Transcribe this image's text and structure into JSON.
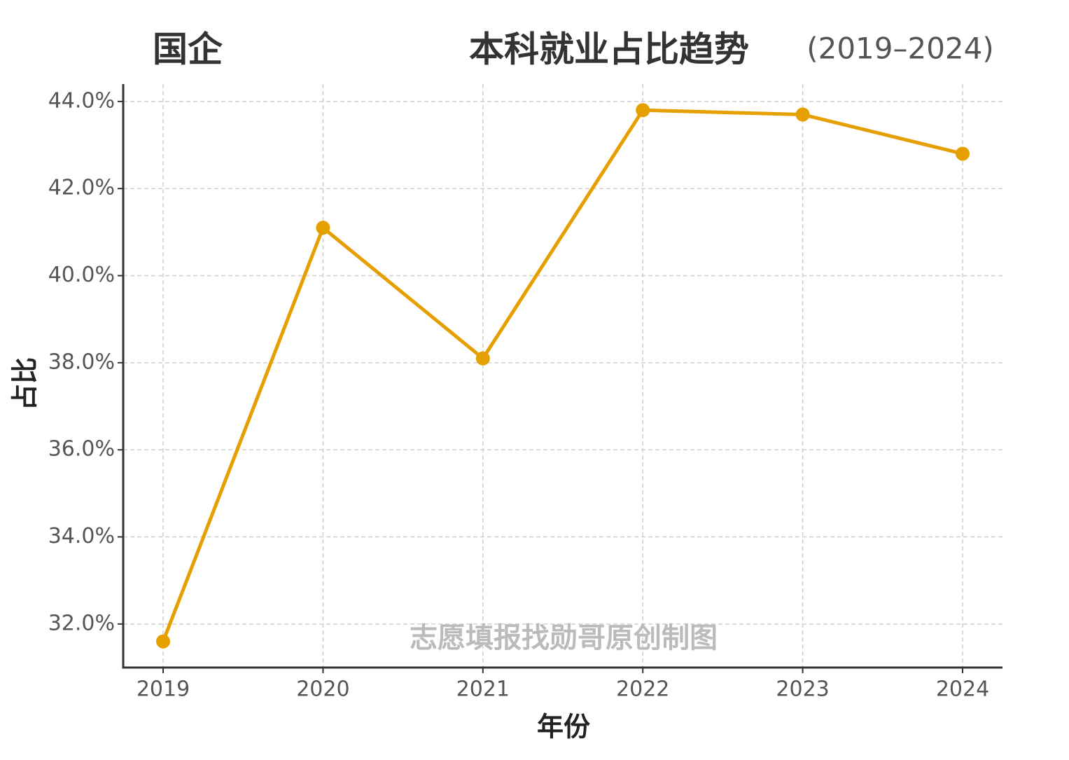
{
  "chart_data": {
    "type": "line",
    "title_prefix": "国企",
    "title": "本科就业占比趋势",
    "subtitle": "(2019–2024)",
    "x_label": "年份",
    "y_label": "占比",
    "annotation": "志愿填报找勋哥原创制图",
    "categories": [
      "2019",
      "2020",
      "2021",
      "2022",
      "2023",
      "2024"
    ],
    "series": [
      {
        "name": "国企",
        "color": "#e69f00",
        "values": [
          31.6,
          41.1,
          38.1,
          43.8,
          43.7,
          42.8
        ]
      }
    ],
    "ylim": [
      31.0,
      44.4
    ],
    "yticks": [
      {
        "value": 32,
        "label": "32.0%"
      },
      {
        "value": 34,
        "label": "34.0%"
      },
      {
        "value": 36,
        "label": "36.0%"
      },
      {
        "value": 38,
        "label": "38.0%"
      },
      {
        "value": 40,
        "label": "40.0%"
      },
      {
        "value": 42,
        "label": "42.0%"
      },
      {
        "value": 44,
        "label": "44.0%"
      }
    ],
    "grid": true
  }
}
